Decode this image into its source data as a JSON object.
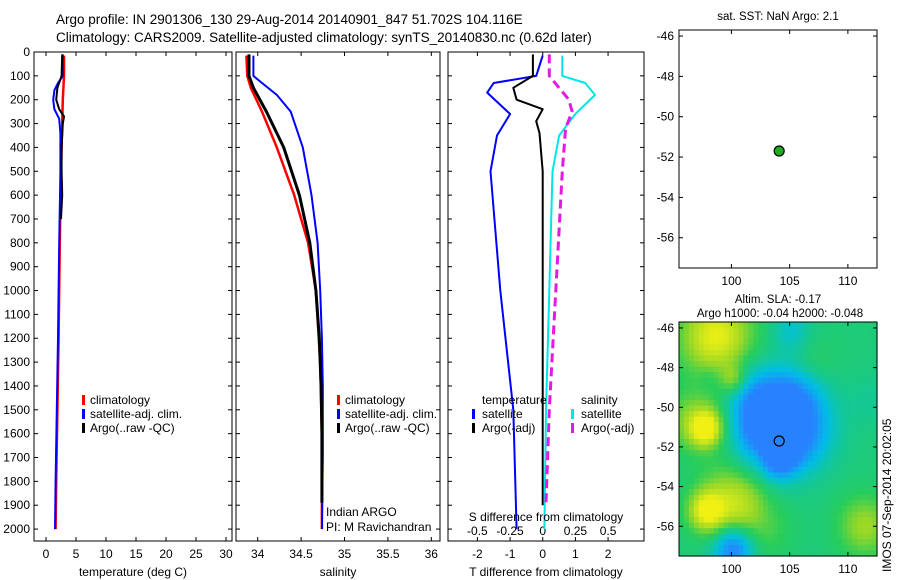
{
  "header": {
    "line1": "Argo profile: IN 2901306_130 29-Aug-2014 20140901_847 51.702S 104.116E",
    "line2": "Climatology: CARS2009. Satellite-adjusted climatology: synTS_20140830.nc (0.62d later)"
  },
  "side_stamp": "IMOS 07-Sep-2014 20:02:05",
  "colors": {
    "climatology": "#ff0000",
    "satellite": "#0000ff",
    "argo": "#000000",
    "sal_satellite": "#00e5e5",
    "sal_argo": "#e31ae3",
    "marker": "#22aa22"
  },
  "chart_data": [
    {
      "id": "temperature",
      "type": "line",
      "xlabel": "temperature (deg C)",
      "ylabel": "",
      "xlim": [
        -2,
        31
      ],
      "ylim": [
        2050,
        0
      ],
      "xticks": [
        0,
        5,
        10,
        15,
        20,
        25,
        30
      ],
      "yticks": [
        0,
        100,
        200,
        300,
        400,
        500,
        600,
        700,
        800,
        900,
        1000,
        1100,
        1200,
        1300,
        1400,
        1500,
        1600,
        1700,
        1800,
        1900,
        2000
      ],
      "legend": [
        "climatology",
        "satellite-adj. clim.",
        "Argo(..raw -QC)"
      ],
      "series": [
        {
          "name": "climatology",
          "color": "#ff0000",
          "width": 2.5,
          "points": [
            [
              3.0,
              15
            ],
            [
              3.0,
              100
            ],
            [
              2.8,
              200
            ],
            [
              2.7,
              300
            ],
            [
              2.5,
              500
            ],
            [
              2.3,
              800
            ],
            [
              2.1,
              1200
            ],
            [
              1.9,
              1500
            ],
            [
              1.7,
              1800
            ],
            [
              1.6,
              2000
            ]
          ]
        },
        {
          "name": "satellite-adj. clim.",
          "color": "#0000ff",
          "width": 2,
          "points": [
            [
              2.8,
              10
            ],
            [
              2.8,
              100
            ],
            [
              2.0,
              130
            ],
            [
              1.4,
              160
            ],
            [
              1.2,
              200
            ],
            [
              1.4,
              240
            ],
            [
              2.2,
              280
            ],
            [
              2.4,
              340
            ],
            [
              2.4,
              500
            ],
            [
              2.2,
              800
            ],
            [
              2.0,
              1200
            ],
            [
              1.8,
              1500
            ],
            [
              1.6,
              1800
            ],
            [
              1.5,
              2000
            ]
          ]
        },
        {
          "name": "Argo(..raw -QC)",
          "color": "#000000",
          "width": 2,
          "points": [
            [
              2.7,
              10
            ],
            [
              2.6,
              100
            ],
            [
              1.9,
              150
            ],
            [
              1.7,
              200
            ],
            [
              2.2,
              240
            ],
            [
              3.0,
              270
            ],
            [
              2.8,
              300
            ],
            [
              2.6,
              400
            ],
            [
              2.6,
              500
            ],
            [
              2.7,
              600
            ],
            [
              2.5,
              700
            ]
          ]
        }
      ]
    },
    {
      "id": "salinity",
      "type": "line",
      "xlabel": "salinity",
      "ylabel": "",
      "xlim": [
        33.75,
        36.1
      ],
      "ylim": [
        2050,
        0
      ],
      "xticks": [
        34,
        34.5,
        35,
        35.5,
        36
      ],
      "legend": [
        "climatology",
        "satellite-adj. clim.",
        "Argo(..raw -QC)"
      ],
      "annotations": [
        "Indian ARGO",
        "PI: M Ravichandran"
      ],
      "series": [
        {
          "name": "climatology",
          "color": "#ff0000",
          "width": 2.5,
          "points": [
            [
              33.87,
              15
            ],
            [
              33.88,
              100
            ],
            [
              33.92,
              150
            ],
            [
              34.05,
              250
            ],
            [
              34.22,
              400
            ],
            [
              34.42,
              600
            ],
            [
              34.58,
              800
            ],
            [
              34.67,
              1000
            ],
            [
              34.72,
              1300
            ],
            [
              34.74,
              1600
            ],
            [
              34.74,
              1900
            ],
            [
              34.74,
              2000
            ]
          ]
        },
        {
          "name": "satellite-adj. clim.",
          "color": "#0000ff",
          "width": 2,
          "points": [
            [
              33.95,
              15
            ],
            [
              33.95,
              100
            ],
            [
              34.05,
              130
            ],
            [
              34.22,
              180
            ],
            [
              34.38,
              250
            ],
            [
              34.52,
              400
            ],
            [
              34.62,
              600
            ],
            [
              34.69,
              800
            ],
            [
              34.72,
              1000
            ],
            [
              34.74,
              1200
            ],
            [
              34.75,
              1400
            ],
            [
              34.75,
              1700
            ],
            [
              34.74,
              2000
            ]
          ]
        },
        {
          "name": "Argo(..raw -QC)",
          "color": "#000000",
          "width": 3,
          "points": [
            [
              33.9,
              10
            ],
            [
              33.9,
              100
            ],
            [
              33.95,
              150
            ],
            [
              34.1,
              250
            ],
            [
              34.3,
              400
            ],
            [
              34.48,
              600
            ],
            [
              34.6,
              800
            ],
            [
              34.67,
              1000
            ],
            [
              34.71,
              1200
            ],
            [
              34.73,
              1400
            ],
            [
              34.74,
              1600
            ],
            [
              34.74,
              1800
            ],
            [
              34.74,
              1890
            ]
          ]
        }
      ]
    },
    {
      "id": "difference",
      "type": "line",
      "xlabel": "T difference from climatology",
      "xlabel_top": "S difference from climatology",
      "xlim": [
        -2.9,
        3.1
      ],
      "ylim": [
        2050,
        0
      ],
      "xticks": [
        -2,
        -1,
        0,
        1,
        2
      ],
      "xticks_s": [
        -0.5,
        -0.25,
        0,
        0.25,
        0.5
      ],
      "xticks_s_labels": [
        "-0.5",
        "-0.25",
        "0",
        "0.25",
        "0.5"
      ],
      "legend_groups": [
        {
          "title": "temperature",
          "items": [
            "satellite",
            "Argo(-adj)"
          ]
        },
        {
          "title": "salinity",
          "items": [
            "satellite",
            "Argo(-adj)"
          ]
        }
      ],
      "series": [
        {
          "name": "T satellite",
          "color": "#0000ff",
          "width": 2,
          "points": [
            [
              0,
              15
            ],
            [
              -0.2,
              100
            ],
            [
              -1.5,
              130
            ],
            [
              -1.7,
              170
            ],
            [
              -1.0,
              260
            ],
            [
              -1.4,
              350
            ],
            [
              -1.6,
              500
            ],
            [
              -1.3,
              1000
            ],
            [
              -0.9,
              1500
            ],
            [
              -0.8,
              2000
            ]
          ]
        },
        {
          "name": "T Argo(-adj)",
          "color": "#000000",
          "width": 2,
          "points": [
            [
              -0.3,
              10
            ],
            [
              -0.3,
              100
            ],
            [
              -0.9,
              150
            ],
            [
              -0.8,
              200
            ],
            [
              0,
              240
            ],
            [
              -0.2,
              290
            ],
            [
              -0.1,
              340
            ],
            [
              0,
              500
            ],
            [
              0,
              1000
            ],
            [
              0,
              1500
            ],
            [
              0,
              1900
            ]
          ]
        },
        {
          "name": "S satellite",
          "color": "#00e5e5",
          "width": 2,
          "points": [
            [
              0.6,
              15
            ],
            [
              0.6,
              100
            ],
            [
              1.3,
              130
            ],
            [
              1.6,
              180
            ],
            [
              1.0,
              260
            ],
            [
              0.5,
              350
            ],
            [
              0.3,
              500
            ],
            [
              0.2,
              1000
            ],
            [
              0.1,
              1500
            ],
            [
              0.05,
              2000
            ]
          ]
        },
        {
          "name": "S Argo(-adj)",
          "color": "#e31ae3",
          "width": 3,
          "dash": true,
          "points": [
            [
              0.2,
              10
            ],
            [
              0.2,
              100
            ],
            [
              0.5,
              150
            ],
            [
              0.8,
              200
            ],
            [
              0.9,
              250
            ],
            [
              0.7,
              320
            ],
            [
              0.6,
              500
            ],
            [
              0.4,
              1000
            ],
            [
              0.2,
              1500
            ],
            [
              0.1,
              1890
            ]
          ]
        }
      ]
    },
    {
      "id": "sst",
      "type": "scatter",
      "title": "sat. SST: NaN Argo: 2.1",
      "xlim": [
        95.5,
        112.5
      ],
      "ylim": [
        -57.5,
        -45.7
      ],
      "xticks": [
        100,
        105,
        110
      ],
      "yticks": [
        -46,
        -48,
        -50,
        -52,
        -54,
        -56
      ],
      "points": [
        [
          104.1,
          -51.7
        ]
      ]
    },
    {
      "id": "sla",
      "type": "heatmap",
      "title": "Altim. SLA: -0.17",
      "subtitle": "Argo h1000: -0.04 h2000: -0.048",
      "xlim": [
        95.5,
        112.5
      ],
      "ylim": [
        -57.5,
        -45.7
      ],
      "xticks": [
        100,
        105,
        110
      ],
      "yticks": [
        -46,
        -48,
        -50,
        -52,
        -54,
        -56
      ],
      "points": [
        [
          104.1,
          -51.7
        ]
      ]
    }
  ]
}
